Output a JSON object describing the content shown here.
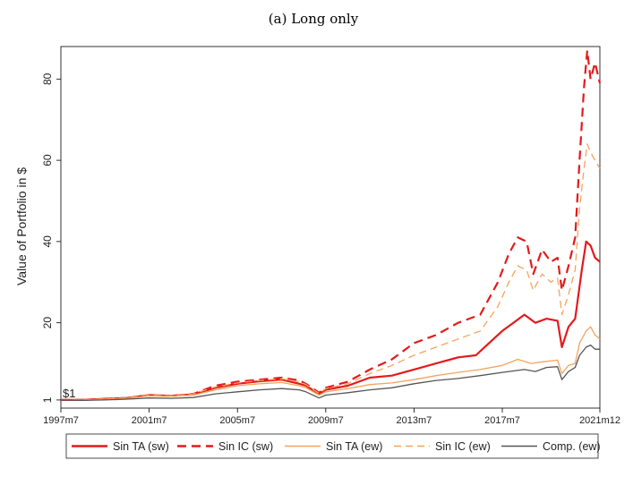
{
  "chart_data": {
    "type": "line",
    "title": "(a) Long only",
    "xlabel": "",
    "ylabel": "Value of Portfolio in $",
    "start_annotation": "$1",
    "x_ticks": [
      "1997m7",
      "2001m7",
      "2005m7",
      "2009m7",
      "2013m7",
      "2017m7",
      "2021m12"
    ],
    "x_tick_values": [
      1997.5,
      2001.5,
      2005.5,
      2009.5,
      2013.5,
      2017.5,
      2021.92
    ],
    "xlim": [
      1997.5,
      2021.92
    ],
    "y_ticks": [
      1,
      20,
      40,
      60,
      80
    ],
    "ylim": [
      -1,
      88
    ],
    "grid": false,
    "legend_position": "bottom",
    "series": [
      {
        "name": "Sin TA (sw)",
        "color": "#e41a1c",
        "dash": "solid",
        "points": [
          [
            1997.5,
            1
          ],
          [
            1998.5,
            1
          ],
          [
            1999.5,
            1.3
          ],
          [
            2000.5,
            1.5
          ],
          [
            2001.5,
            2.2
          ],
          [
            2002.5,
            2
          ],
          [
            2003.5,
            2.4
          ],
          [
            2004.5,
            4
          ],
          [
            2005.5,
            5
          ],
          [
            2006.5,
            5.6
          ],
          [
            2007.5,
            6
          ],
          [
            2008.3,
            5
          ],
          [
            2008.6,
            4.5
          ],
          [
            2009.2,
            2.5
          ],
          [
            2009.5,
            3.5
          ],
          [
            2010.5,
            4.5
          ],
          [
            2011.5,
            6.5
          ],
          [
            2012.5,
            7
          ],
          [
            2013.5,
            8.5
          ],
          [
            2014.5,
            10
          ],
          [
            2015.5,
            11.5
          ],
          [
            2016.3,
            12
          ],
          [
            2016.7,
            14
          ],
          [
            2017.5,
            18
          ],
          [
            2018.0,
            20
          ],
          [
            2018.5,
            22
          ],
          [
            2019.0,
            20
          ],
          [
            2019.5,
            21
          ],
          [
            2020.0,
            20.5
          ],
          [
            2020.2,
            14
          ],
          [
            2020.5,
            19
          ],
          [
            2020.8,
            21
          ],
          [
            2021.1,
            33
          ],
          [
            2021.3,
            40
          ],
          [
            2021.5,
            39
          ],
          [
            2021.7,
            36
          ],
          [
            2021.92,
            35
          ]
        ]
      },
      {
        "name": "Sin IC (sw)",
        "color": "#e41a1c",
        "dash": "dashed",
        "points": [
          [
            1997.5,
            1
          ],
          [
            1998.5,
            1
          ],
          [
            1999.5,
            1.3
          ],
          [
            2000.5,
            1.5
          ],
          [
            2001.5,
            2.2
          ],
          [
            2002.5,
            2
          ],
          [
            2003.5,
            2.5
          ],
          [
            2004.5,
            4.5
          ],
          [
            2005.5,
            5.5
          ],
          [
            2006.5,
            6
          ],
          [
            2007.5,
            6.5
          ],
          [
            2008.3,
            5.8
          ],
          [
            2008.6,
            5
          ],
          [
            2009.2,
            2.8
          ],
          [
            2009.5,
            4
          ],
          [
            2010.5,
            5.5
          ],
          [
            2011.5,
            8.5
          ],
          [
            2012.5,
            11
          ],
          [
            2013.5,
            15
          ],
          [
            2014.5,
            17
          ],
          [
            2015.5,
            20
          ],
          [
            2016.5,
            22
          ],
          [
            2017.3,
            30
          ],
          [
            2017.8,
            37
          ],
          [
            2018.2,
            41
          ],
          [
            2018.6,
            40
          ],
          [
            2018.9,
            32
          ],
          [
            2019.3,
            38
          ],
          [
            2019.7,
            35
          ],
          [
            2020.0,
            36
          ],
          [
            2020.2,
            28
          ],
          [
            2020.5,
            34
          ],
          [
            2020.8,
            41
          ],
          [
            2021.0,
            60
          ],
          [
            2021.2,
            78
          ],
          [
            2021.35,
            87
          ],
          [
            2021.5,
            80
          ],
          [
            2021.7,
            84
          ],
          [
            2021.92,
            79
          ]
        ]
      },
      {
        "name": "Sin TA (ew)",
        "color": "#f5a35d",
        "dash": "solid",
        "points": [
          [
            1997.5,
            1
          ],
          [
            1998.5,
            1
          ],
          [
            1999.5,
            1.2
          ],
          [
            2000.5,
            1.4
          ],
          [
            2001.5,
            2
          ],
          [
            2002.5,
            1.9
          ],
          [
            2003.5,
            2.2
          ],
          [
            2004.5,
            3.5
          ],
          [
            2005.5,
            4.5
          ],
          [
            2006.5,
            5
          ],
          [
            2007.5,
            5.3
          ],
          [
            2008.3,
            4.5
          ],
          [
            2008.6,
            4
          ],
          [
            2009.2,
            2.2
          ],
          [
            2009.5,
            3
          ],
          [
            2010.5,
            3.8
          ],
          [
            2011.5,
            4.8
          ],
          [
            2012.5,
            5.2
          ],
          [
            2013.5,
            6
          ],
          [
            2014.5,
            7
          ],
          [
            2015.5,
            7.8
          ],
          [
            2016.5,
            8.5
          ],
          [
            2017.5,
            9.5
          ],
          [
            2018.2,
            11
          ],
          [
            2018.8,
            10
          ],
          [
            2019.5,
            10.5
          ],
          [
            2020.0,
            10.8
          ],
          [
            2020.2,
            7.5
          ],
          [
            2020.5,
            9.5
          ],
          [
            2020.8,
            10
          ],
          [
            2021.0,
            15
          ],
          [
            2021.3,
            18
          ],
          [
            2021.5,
            19
          ],
          [
            2021.7,
            17
          ],
          [
            2021.92,
            16
          ]
        ]
      },
      {
        "name": "Sin IC (ew)",
        "color": "#f5a35d",
        "dash": "dashed",
        "points": [
          [
            1997.5,
            1
          ],
          [
            1998.5,
            1
          ],
          [
            1999.5,
            1.3
          ],
          [
            2000.5,
            1.5
          ],
          [
            2001.5,
            2.2
          ],
          [
            2002.5,
            2
          ],
          [
            2003.5,
            2.5
          ],
          [
            2004.5,
            4.2
          ],
          [
            2005.5,
            5.2
          ],
          [
            2006.5,
            5.8
          ],
          [
            2007.5,
            6.2
          ],
          [
            2008.3,
            5.5
          ],
          [
            2008.6,
            4.8
          ],
          [
            2009.2,
            2.6
          ],
          [
            2009.5,
            3.8
          ],
          [
            2010.5,
            5
          ],
          [
            2011.5,
            7.5
          ],
          [
            2012.5,
            9.5
          ],
          [
            2013.5,
            12
          ],
          [
            2014.5,
            14
          ],
          [
            2015.5,
            16
          ],
          [
            2016.5,
            18
          ],
          [
            2017.3,
            24
          ],
          [
            2017.8,
            30
          ],
          [
            2018.2,
            34
          ],
          [
            2018.6,
            33
          ],
          [
            2018.9,
            28
          ],
          [
            2019.3,
            32
          ],
          [
            2019.7,
            30
          ],
          [
            2020.0,
            31
          ],
          [
            2020.2,
            22
          ],
          [
            2020.5,
            27
          ],
          [
            2020.8,
            33
          ],
          [
            2021.0,
            48
          ],
          [
            2021.2,
            58
          ],
          [
            2021.35,
            64
          ],
          [
            2021.5,
            62
          ],
          [
            2021.7,
            60
          ],
          [
            2021.92,
            58
          ]
        ]
      },
      {
        "name": "Comp. (ew)",
        "color": "#555555",
        "dash": "solid",
        "points": [
          [
            1997.5,
            1
          ],
          [
            1998.5,
            0.9
          ],
          [
            1999.5,
            1
          ],
          [
            2000.5,
            1.2
          ],
          [
            2001.5,
            1.5
          ],
          [
            2002.5,
            1.4
          ],
          [
            2003.5,
            1.6
          ],
          [
            2004.5,
            2.5
          ],
          [
            2005.5,
            3
          ],
          [
            2006.5,
            3.5
          ],
          [
            2007.5,
            3.8
          ],
          [
            2008.3,
            3.5
          ],
          [
            2008.6,
            3
          ],
          [
            2009.2,
            1.5
          ],
          [
            2009.5,
            2.2
          ],
          [
            2010.5,
            2.8
          ],
          [
            2011.5,
            3.5
          ],
          [
            2012.5,
            4
          ],
          [
            2013.5,
            5
          ],
          [
            2014.5,
            5.8
          ],
          [
            2015.5,
            6.3
          ],
          [
            2016.5,
            7
          ],
          [
            2017.5,
            7.8
          ],
          [
            2018.5,
            8.5
          ],
          [
            2019.0,
            8
          ],
          [
            2019.5,
            9
          ],
          [
            2020.0,
            9.2
          ],
          [
            2020.2,
            6
          ],
          [
            2020.5,
            8
          ],
          [
            2020.8,
            9
          ],
          [
            2021.0,
            12
          ],
          [
            2021.3,
            14
          ],
          [
            2021.5,
            14.5
          ],
          [
            2021.7,
            13.5
          ],
          [
            2021.92,
            13.5
          ]
        ]
      }
    ]
  }
}
